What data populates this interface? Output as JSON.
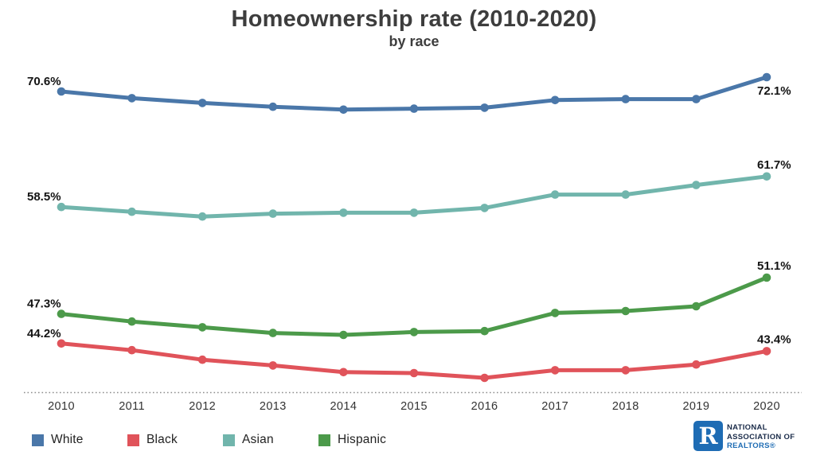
{
  "header": {
    "title": "Homeownership rate (2010-2020)",
    "subtitle": "by race"
  },
  "chart_data": {
    "type": "line",
    "title": "Homeownership rate (2010-2020)",
    "subtitle": "by race",
    "unit": "%",
    "categories": [
      "2010",
      "2011",
      "2012",
      "2013",
      "2014",
      "2015",
      "2016",
      "2017",
      "2018",
      "2019",
      "2020"
    ],
    "ylim": [
      40,
      74
    ],
    "grid": false,
    "y_axis_shown": false,
    "x_axis_style": "dotted",
    "legend_position": "bottom-left",
    "series": [
      {
        "name": "White",
        "color": "#4a77a9",
        "values": [
          70.6,
          69.9,
          69.4,
          69.0,
          68.7,
          68.8,
          68.9,
          69.7,
          69.8,
          69.8,
          72.1
        ],
        "start_label": "70.6%",
        "end_label": "72.1%",
        "end_label_placement": "below"
      },
      {
        "name": "Asian",
        "color": "#71b5ac",
        "values": [
          58.5,
          58.0,
          57.5,
          57.8,
          57.9,
          57.9,
          58.4,
          59.8,
          59.8,
          60.8,
          61.7
        ],
        "start_label": "58.5%",
        "end_label": "61.7%",
        "end_label_placement": "above"
      },
      {
        "name": "Hispanic",
        "color": "#4c9a4a",
        "values": [
          47.3,
          46.5,
          45.9,
          45.3,
          45.1,
          45.4,
          45.5,
          47.4,
          47.6,
          48.1,
          51.1
        ],
        "start_label": "47.3%",
        "end_label": "51.1%",
        "end_label_placement": "above"
      },
      {
        "name": "Black",
        "color": "#e0535a",
        "values": [
          44.2,
          43.5,
          42.5,
          41.9,
          41.2,
          41.1,
          40.6,
          41.4,
          41.4,
          42.0,
          43.4
        ],
        "start_label": "44.2%",
        "end_label": "43.4%",
        "end_label_placement": "above"
      }
    ]
  },
  "legend": {
    "items": [
      {
        "label": "White",
        "color": "#4a77a9"
      },
      {
        "label": "Black",
        "color": "#e0535a"
      },
      {
        "label": "Asian",
        "color": "#71b5ac"
      },
      {
        "label": "Hispanic",
        "color": "#4c9a4a"
      }
    ]
  },
  "footer_logo": {
    "square_letter": "R",
    "line1": "NATIONAL",
    "line2": "ASSOCIATION OF",
    "line3": "REALTORS®",
    "navy": "#1a2b49",
    "blue": "#1e6cb4"
  }
}
